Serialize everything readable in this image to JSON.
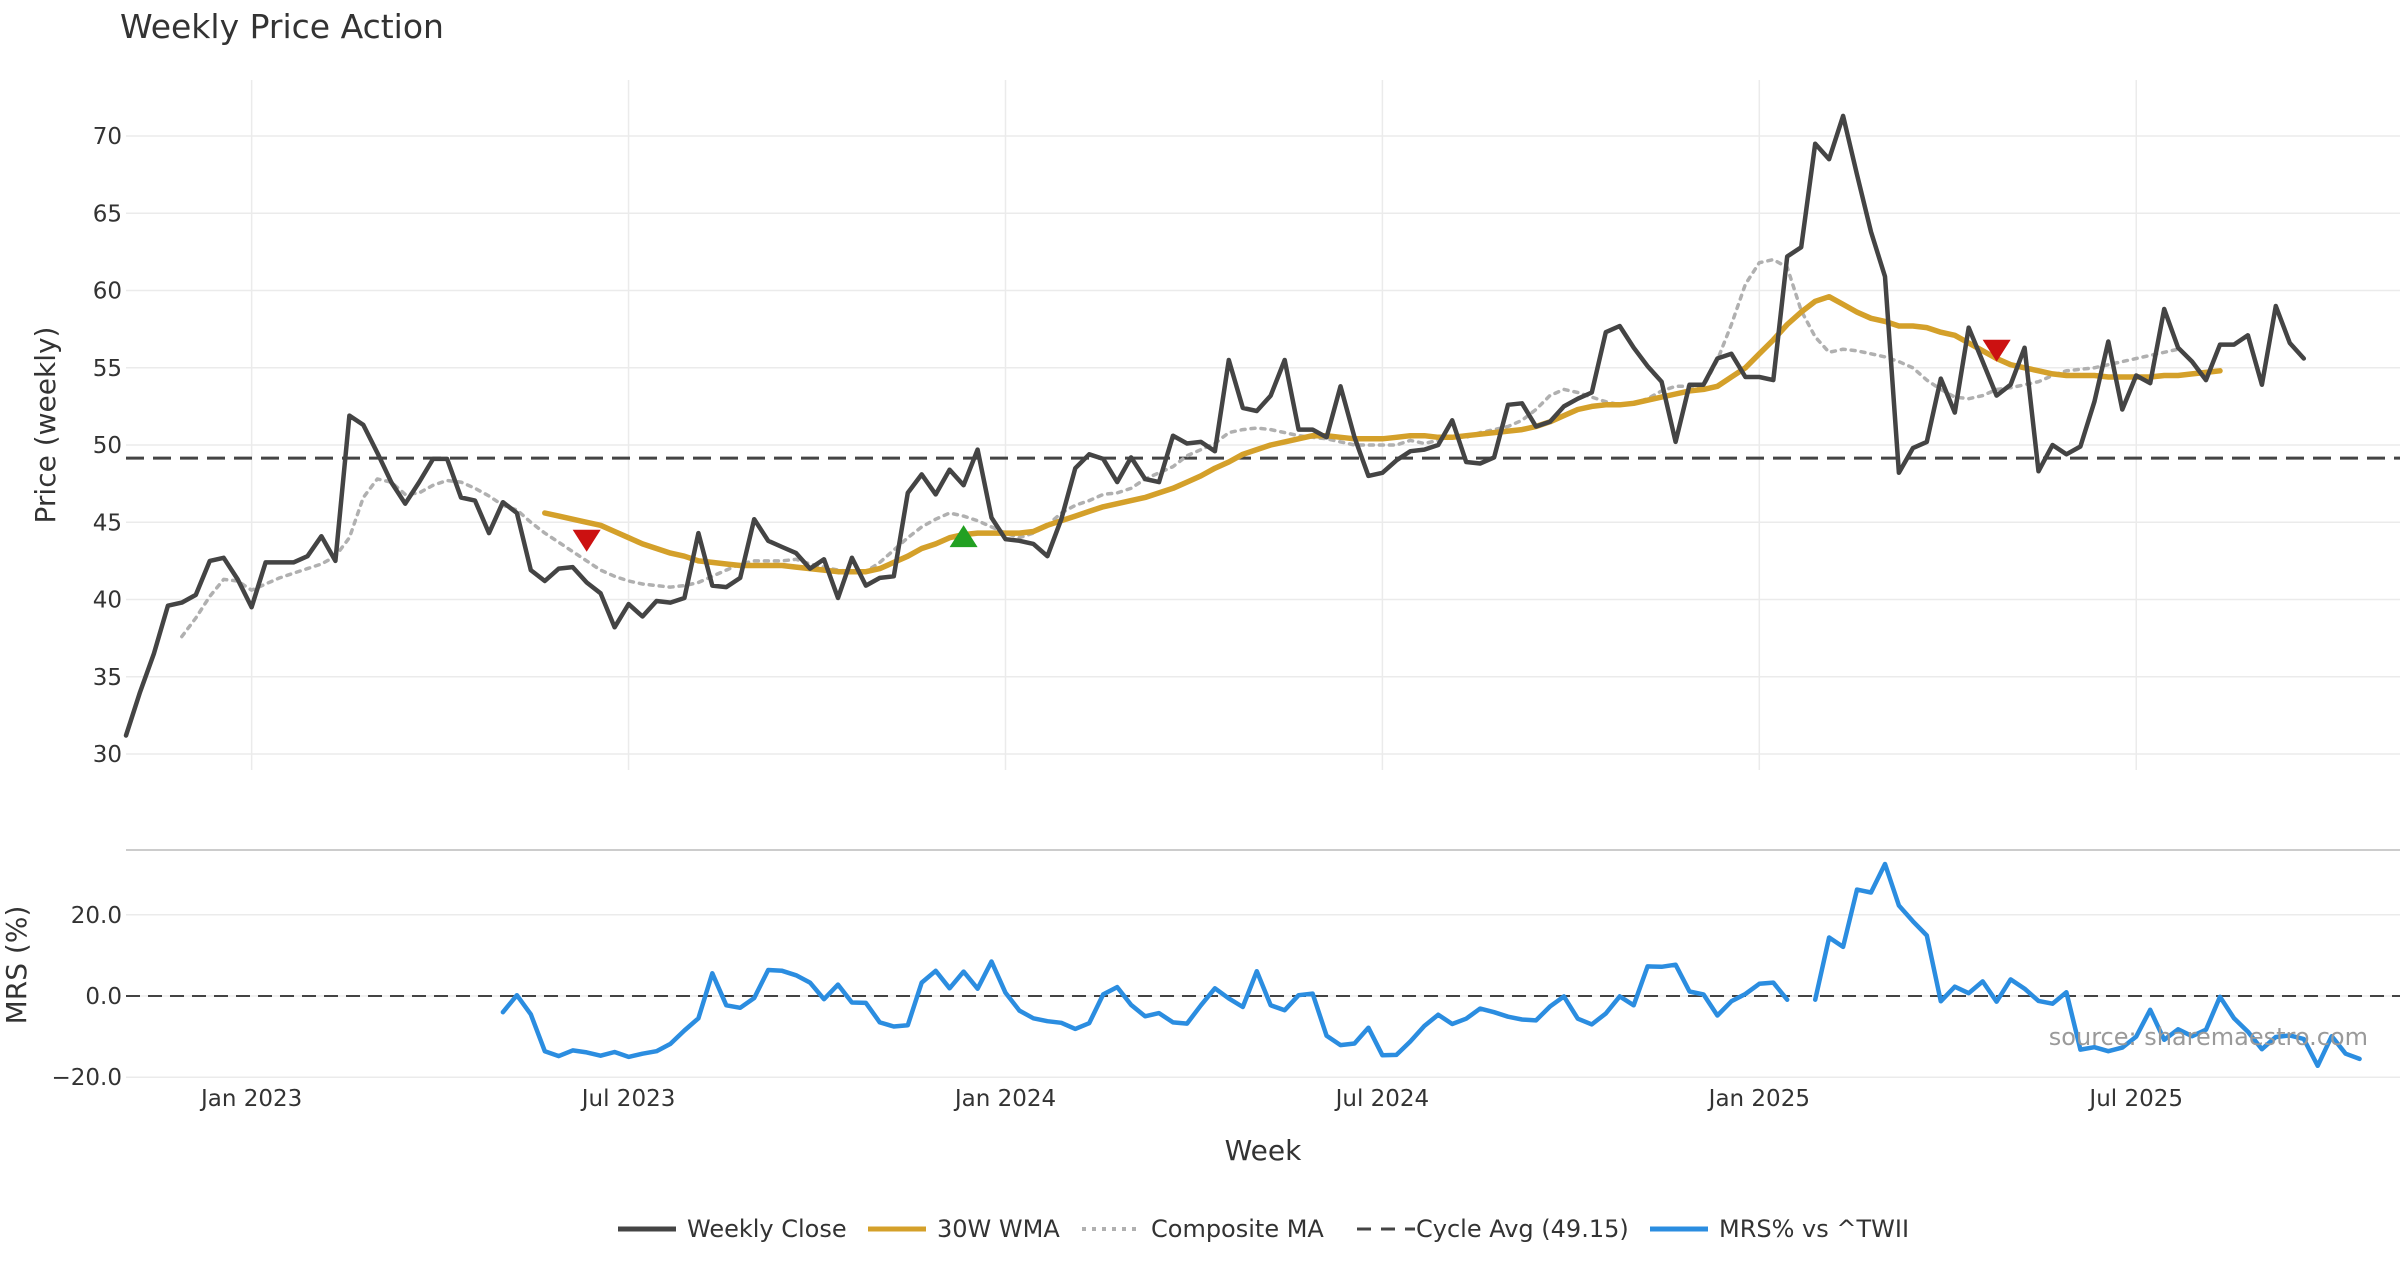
{
  "chart_data": [
    {
      "type": "line",
      "title": "Weekly Price Action",
      "ylabel": "Price (weekly)",
      "xlabel": "Week",
      "ylim": [
        29.5,
        73.5
      ],
      "yticks": [
        30,
        35,
        40,
        45,
        50,
        55,
        60,
        65,
        70
      ],
      "x_range_weeks": [
        0,
        170
      ],
      "x_ticks": [
        {
          "label": "Jan 2023",
          "week": 9
        },
        {
          "label": "Jul 2023",
          "week": 36
        },
        {
          "label": "Jan 2024",
          "week": 63
        },
        {
          "label": "Jul 2024",
          "week": 90
        },
        {
          "label": "Jan 2025",
          "week": 117
        },
        {
          "label": "Jul 2025",
          "week": 144
        }
      ],
      "cycle_avg": 49.15,
      "series": [
        {
          "name": "Weekly Close",
          "color": "#444444",
          "start_week": 0,
          "values": [
            31.2,
            34,
            36.5,
            39.6,
            39.8,
            40.3,
            42.5,
            42.7,
            41.3,
            39.5,
            42.4,
            42.4,
            42.4,
            42.8,
            44.1,
            42.5,
            51.9,
            51.3,
            49.5,
            47.6,
            46.2,
            47.6,
            49.1,
            49.1,
            46.6,
            46.4,
            44.3,
            46.3,
            45.6,
            41.9,
            41.2,
            42,
            42.1,
            41.1,
            40.4,
            38.2,
            39.7,
            38.9,
            39.9,
            39.8,
            40.1,
            44.3,
            40.9,
            40.8,
            41.4,
            45.2,
            43.8,
            43.4,
            43,
            42,
            42.6,
            40.1,
            42.7,
            40.9,
            41.4,
            41.5,
            46.9,
            48.1,
            46.8,
            48.4,
            47.4,
            49.7,
            45.3,
            43.9,
            43.8,
            43.6,
            42.8,
            45.2,
            48.5,
            49.4,
            49.1,
            47.6,
            49.2,
            47.8,
            47.6,
            50.6,
            50.1,
            50.2,
            49.6,
            55.5,
            52.4,
            52.2,
            53.2,
            55.5,
            51,
            51,
            50.5,
            53.8,
            50.5,
            48,
            48.2,
            49,
            49.6,
            49.7,
            50,
            51.6,
            48.9,
            48.8,
            49.2,
            52.6,
            52.7,
            51.2,
            51.5,
            52.5,
            53,
            53.4,
            57.3,
            57.7,
            56.3,
            55.1,
            54.1,
            50.2,
            53.9,
            53.9,
            55.6,
            55.9,
            54.4,
            54.4,
            54.2,
            62.2,
            62.8,
            69.5,
            68.5,
            71.3,
            67.5,
            63.8,
            60.9,
            48.2,
            49.8,
            50.2,
            54.3,
            52.1,
            57.6,
            55.4,
            53.2,
            53.9,
            56.3,
            48.3,
            50,
            49.4,
            49.9,
            52.8,
            56.7,
            52.3,
            54.5,
            54,
            58.8,
            56.3,
            55.4,
            54.2,
            56.5,
            56.5,
            57.1,
            53.9,
            59,
            56.6,
            55.6
          ]
        },
        {
          "name": "30W WMA",
          "color": "#d4a02a",
          "start_week": 30,
          "values": [
            45.6,
            45.4,
            45.2,
            45,
            44.8,
            44.4,
            44,
            43.6,
            43.3,
            43,
            42.8,
            42.5,
            42.4,
            42.3,
            42.2,
            42.2,
            42.2,
            42.2,
            42.1,
            42,
            41.9,
            41.8,
            41.8,
            41.8,
            42,
            42.4,
            42.8,
            43.3,
            43.6,
            44,
            44.2,
            44.3,
            44.3,
            44.3,
            44.3,
            44.4,
            44.8,
            45.1,
            45.4,
            45.7,
            46,
            46.2,
            46.4,
            46.6,
            46.9,
            47.2,
            47.6,
            48,
            48.5,
            48.9,
            49.4,
            49.7,
            50,
            50.2,
            50.4,
            50.6,
            50.6,
            50.5,
            50.4,
            50.4,
            50.4,
            50.5,
            50.6,
            50.6,
            50.5,
            50.5,
            50.6,
            50.7,
            50.8,
            50.9,
            51,
            51.2,
            51.5,
            51.9,
            52.3,
            52.5,
            52.6,
            52.6,
            52.7,
            52.9,
            53.1,
            53.3,
            53.5,
            53.6,
            53.8,
            54.4,
            55,
            55.9,
            56.8,
            57.8,
            58.6,
            59.3,
            59.6,
            59.1,
            58.6,
            58.2,
            58,
            57.7,
            57.7,
            57.6,
            57.3,
            57.1,
            56.6,
            56.1,
            55.6,
            55.2,
            55,
            54.8,
            54.6,
            54.5,
            54.5,
            54.5,
            54.4,
            54.4,
            54.4,
            54.4,
            54.5,
            54.5,
            54.6,
            54.7,
            54.8
          ]
        },
        {
          "name": "Composite MA",
          "color": "#b0b0b0",
          "start_week": 4,
          "values": [
            37.6,
            38.8,
            40.2,
            41.3,
            41.2,
            40.6,
            41,
            41.4,
            41.7,
            42,
            42.3,
            42.8,
            44,
            46.6,
            47.8,
            47.6,
            46.8,
            46.9,
            47.4,
            47.7,
            47.6,
            47.2,
            46.7,
            46.1,
            45.8,
            45,
            44.3,
            43.7,
            43.1,
            42.5,
            41.9,
            41.5,
            41.2,
            41,
            40.9,
            40.8,
            40.9,
            41.1,
            41.5,
            41.9,
            42.3,
            42.5,
            42.5,
            42.5,
            42.6,
            42.3,
            42.1,
            41.9,
            41.8,
            41.8,
            42.4,
            43.2,
            44,
            44.7,
            45.2,
            45.6,
            45.4,
            45.1,
            44.7,
            44.3,
            44,
            44.3,
            44.8,
            45.6,
            46.1,
            46.4,
            46.8,
            46.9,
            47.2,
            47.8,
            48.2,
            48.6,
            49.3,
            49.7,
            50.1,
            50.8,
            51,
            51.1,
            51,
            50.8,
            50.6,
            50.5,
            50.4,
            50.2,
            50,
            50,
            50,
            50,
            50.3,
            50.1,
            50.3,
            50.5,
            50.5,
            50.8,
            51,
            51.2,
            51.6,
            52.3,
            53.2,
            53.6,
            53.4,
            53.1,
            52.8,
            52.6,
            52.7,
            53,
            53.5,
            53.8,
            53.8,
            53.8,
            55.5,
            57.8,
            60.4,
            61.8,
            62,
            61.5,
            58.7,
            57,
            56,
            56.2,
            56.1,
            55.9,
            55.7,
            55.4,
            55,
            54.2,
            53.6,
            53.1,
            53,
            53.2,
            53.6,
            53.7,
            53.9,
            54.1,
            54.5,
            54.8,
            54.9,
            55,
            55.2,
            55.4,
            55.6,
            55.8,
            56,
            56.2
          ]
        }
      ],
      "signals": [
        {
          "type": "sell",
          "week": 33,
          "value": 43.8,
          "color": "#cc1111"
        },
        {
          "type": "buy",
          "week": 60,
          "value": 44.1,
          "color": "#22a022"
        },
        {
          "type": "sell",
          "week": 134,
          "value": 56.1,
          "color": "#cc1111"
        }
      ]
    },
    {
      "type": "line",
      "ylabel": "MRS (%)",
      "ylim": [
        -21.5,
        35
      ],
      "yticks": [
        20,
        0,
        -20
      ],
      "ytick_labels": [
        "20.0",
        "0.0",
        "−20.0"
      ],
      "zero_line": 0,
      "series": [
        {
          "name": "MRS% vs ^TWII",
          "color": "#2b8de0",
          "start_week": 27,
          "values": [
            -4,
            0.2,
            -4.5,
            -13.6,
            -14.8,
            -13.4,
            -13.9,
            -14.7,
            -13.8,
            -15,
            -14.2,
            -13.6,
            -11.8,
            -8.5,
            -5.5,
            5.6,
            -2.3,
            -2.9,
            -0.5,
            6.4,
            6.2,
            5.1,
            3.3,
            -0.8,
            2.8,
            -1.6,
            -1.7,
            -6.5,
            -7.5,
            -7.2,
            3.3,
            6.2,
            1.9,
            6,
            1.8,
            8.5,
            0.8,
            -3.6,
            -5.5,
            -6.2,
            -6.6,
            -8.1,
            -6.7,
            0.4,
            2.2,
            -2.2,
            -5,
            -4.2,
            -6.5,
            -6.8,
            -2.3,
            1.9,
            -0.6,
            -2.7,
            6.1,
            -2.3,
            -3.5,
            0.2,
            0.6,
            -9.8,
            -12.1,
            -11.7,
            -7.8,
            -14.6,
            -14.5,
            -11.2,
            -7.4,
            -4.6,
            -6.9,
            -5.6,
            -3.1,
            -4,
            -5.1,
            -5.8,
            -6,
            -2.6,
            -0.1,
            -5.6,
            -7,
            -4.3,
            -0.1,
            -2.3,
            7.3,
            7.2,
            7.7,
            1.1,
            0.4,
            -4.8,
            -1.3,
            0.5,
            3,
            3.3,
            -0.9,
            null,
            -0.9,
            14.4,
            12.1,
            26.2,
            25.5,
            32.5,
            22.3,
            18.4,
            14.9,
            -1.3,
            2.3,
            0.7,
            3.6,
            -1.4,
            4.1,
            1.8,
            -1.2,
            -1.9,
            0.9,
            -13.2,
            -12.6,
            -13.6,
            -12.7,
            -10,
            -3.4,
            -10.8,
            -8.2,
            -9.9,
            -8.3,
            -0.2,
            -5.5,
            -8.8,
            -13.1,
            -10.1,
            -9.7,
            -10.6,
            -17.2,
            -9.9,
            -14.2,
            -15.5
          ]
        }
      ]
    }
  ],
  "legend": [
    {
      "label": "Weekly Close",
      "style": "solid",
      "color": "#444444"
    },
    {
      "label": "30W WMA",
      "style": "solid",
      "color": "#d4a02a"
    },
    {
      "label": "Composite MA",
      "style": "dotted",
      "color": "#b0b0b0"
    },
    {
      "label": "Cycle Avg (49.15)",
      "style": "dashed",
      "color": "#444444"
    },
    {
      "label": "MRS% vs ^TWII",
      "style": "solid",
      "color": "#2b8de0"
    }
  ],
  "watermark": "source: sharemaestro.com"
}
